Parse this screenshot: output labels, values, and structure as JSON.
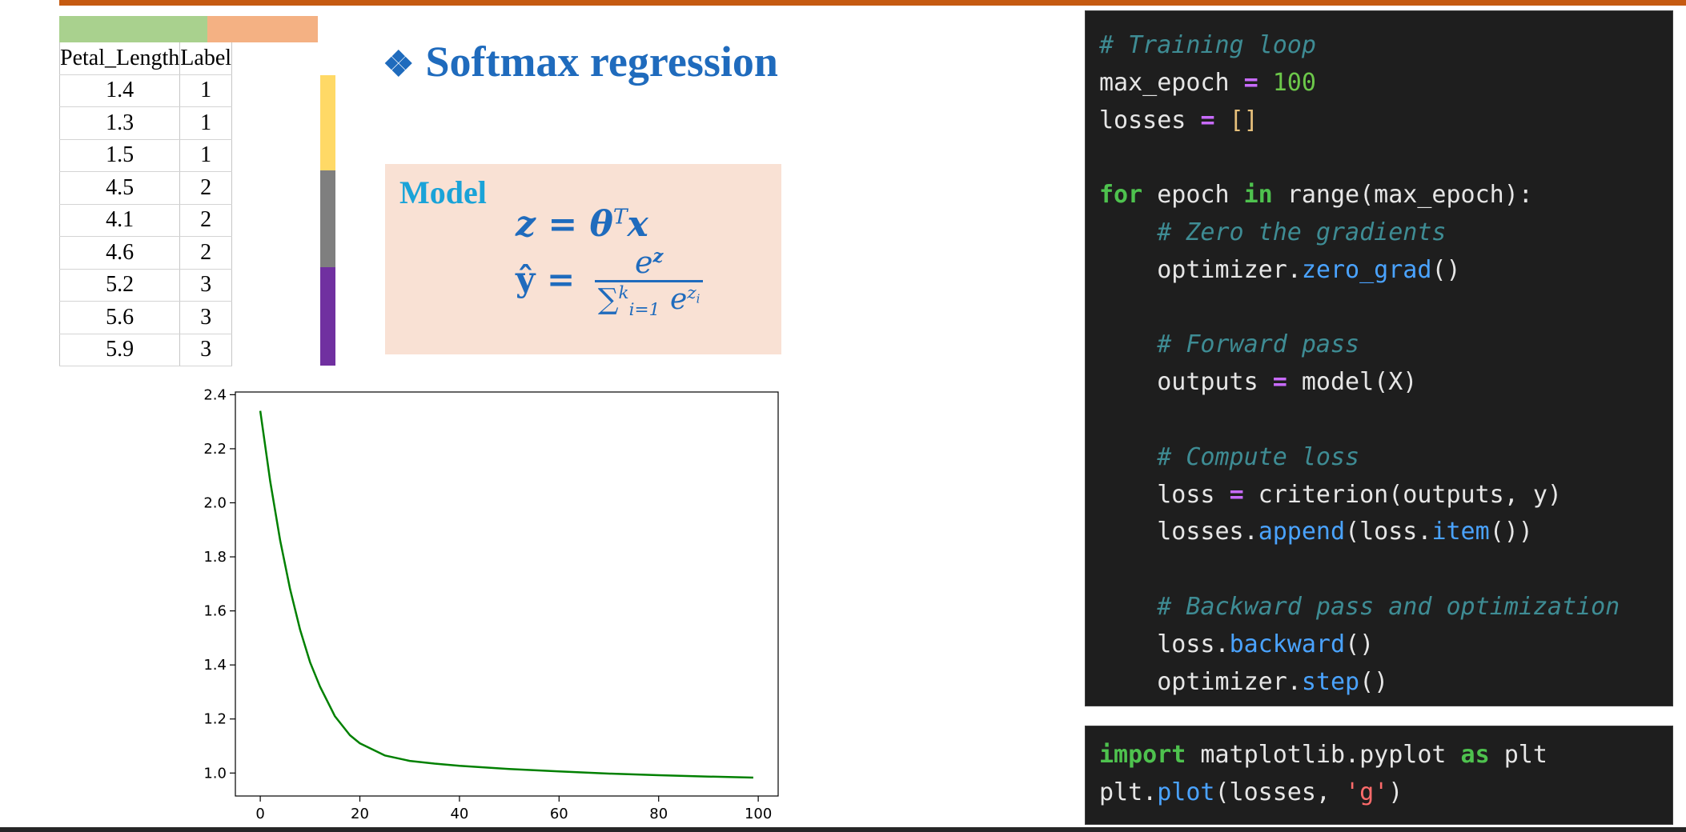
{
  "slide": {
    "title": "Softmax regression",
    "title_bullet": "❖",
    "accent_color": "#c55a11",
    "title_color": "#1f6bbd"
  },
  "table": {
    "headers": [
      "Petal_Length",
      "Label"
    ],
    "rows": [
      [
        "1.4",
        "1"
      ],
      [
        "1.3",
        "1"
      ],
      [
        "1.5",
        "1"
      ],
      [
        "4.5",
        "2"
      ],
      [
        "4.1",
        "2"
      ],
      [
        "4.6",
        "2"
      ],
      [
        "5.2",
        "3"
      ],
      [
        "5.6",
        "3"
      ],
      [
        "5.9",
        "3"
      ]
    ],
    "class_colors": [
      "#ffd966",
      "#7f7f7f",
      "#7030a0"
    ]
  },
  "model": {
    "label": "Model",
    "eq1_lhs": "z",
    "eq1_rhs_base": "θ",
    "eq1_rhs_sup": "T",
    "eq1_rhs_tail": "x",
    "eq2_lhs": "ŷ",
    "eq2_num_base": "e",
    "eq2_num_sup": "z",
    "eq2_den_sum": "∑",
    "eq2_den_sup": "k",
    "eq2_den_sub": "i=1",
    "eq2_den_exp_base": "e",
    "eq2_den_exp_sup": "z",
    "eq2_den_exp_sub": "i"
  },
  "chart_data": {
    "type": "line",
    "x_ticks": [
      "0",
      "20",
      "40",
      "60",
      "80",
      "100"
    ],
    "y_ticks": [
      "1.0",
      "1.2",
      "1.4",
      "1.6",
      "1.8",
      "2.0",
      "2.2",
      "2.4"
    ],
    "xlim": [
      -5,
      104
    ],
    "ylim": [
      0.915,
      2.41
    ],
    "series": [
      {
        "color": "#008000",
        "x": [
          0,
          2,
          4,
          6,
          8,
          10,
          12,
          15,
          18,
          20,
          25,
          30,
          35,
          40,
          50,
          60,
          70,
          80,
          90,
          99
        ],
        "values": [
          2.34,
          2.08,
          1.86,
          1.68,
          1.53,
          1.41,
          1.32,
          1.21,
          1.14,
          1.11,
          1.065,
          1.045,
          1.035,
          1.027,
          1.015,
          1.006,
          0.998,
          0.992,
          0.987,
          0.983
        ]
      }
    ]
  },
  "code_training": [
    [
      [
        "# Training loop",
        "t-com"
      ]
    ],
    [
      [
        "max_epoch ",
        ""
      ],
      [
        "=",
        "t-op"
      ],
      [
        " ",
        ""
      ],
      [
        "100",
        "t-num"
      ]
    ],
    [
      [
        "losses ",
        ""
      ],
      [
        "=",
        "t-op"
      ],
      [
        " ",
        ""
      ],
      [
        "[]",
        "t-br"
      ]
    ],
    [
      [
        "",
        ""
      ]
    ],
    [
      [
        "for",
        "t-kw"
      ],
      [
        " epoch ",
        ""
      ],
      [
        "in",
        "t-kw"
      ],
      [
        " range(max_epoch):",
        ""
      ]
    ],
    [
      [
        "    ",
        ""
      ],
      [
        "# Zero the gradients",
        "t-com"
      ]
    ],
    [
      [
        "    optimizer.",
        ""
      ],
      [
        "zero_grad",
        "t-fn"
      ],
      [
        "()",
        ""
      ]
    ],
    [
      [
        "",
        ""
      ]
    ],
    [
      [
        "    ",
        ""
      ],
      [
        "# Forward pass",
        "t-com"
      ]
    ],
    [
      [
        "    outputs ",
        ""
      ],
      [
        "=",
        "t-op"
      ],
      [
        " model(X)",
        ""
      ]
    ],
    [
      [
        "",
        ""
      ]
    ],
    [
      [
        "    ",
        ""
      ],
      [
        "# Compute loss",
        "t-com"
      ]
    ],
    [
      [
        "    loss ",
        ""
      ],
      [
        "=",
        "t-op"
      ],
      [
        " criterion(outputs, y)",
        ""
      ]
    ],
    [
      [
        "    losses.",
        ""
      ],
      [
        "append",
        "t-fn"
      ],
      [
        "(loss.",
        ""
      ],
      [
        "item",
        "t-fn"
      ],
      [
        "())",
        ""
      ]
    ],
    [
      [
        "",
        ""
      ]
    ],
    [
      [
        "    ",
        ""
      ],
      [
        "# Backward pass and optimization",
        "t-com"
      ]
    ],
    [
      [
        "    loss.",
        ""
      ],
      [
        "backward",
        "t-fn"
      ],
      [
        "()",
        ""
      ]
    ],
    [
      [
        "    optimizer.",
        ""
      ],
      [
        "step",
        "t-fn"
      ],
      [
        "()",
        ""
      ]
    ]
  ],
  "code_plot": [
    [
      [
        "import",
        "t-kw"
      ],
      [
        " matplotlib.pyplot ",
        ""
      ],
      [
        "as",
        "t-kw"
      ],
      [
        " plt",
        ""
      ]
    ],
    [
      [
        "plt.",
        ""
      ],
      [
        "plot",
        "t-fn"
      ],
      [
        "(losses, ",
        ""
      ],
      [
        "'g'",
        "t-str"
      ],
      [
        ")",
        ""
      ]
    ]
  ]
}
